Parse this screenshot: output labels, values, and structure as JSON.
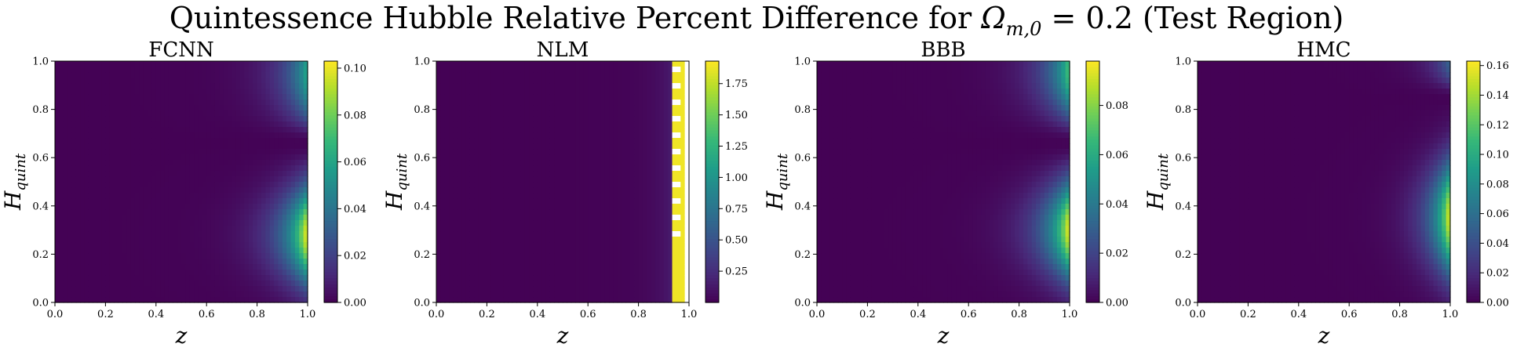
{
  "figure": {
    "title": "Quintessence Hubble Relative Percent Difference for Ωm,0 = 0.2 (Test Region)",
    "title_main": "Quintessence Hubble Relative Percent Difference for ",
    "title_omega": "Ω",
    "title_sub": "m,0",
    "title_rest": " = 0.2 (Test Region)"
  },
  "axis_text": {
    "xlabel": "z",
    "ylabel_main": "H",
    "ylabel_sub": "quint"
  },
  "colormap": "viridis",
  "chart_data": [
    {
      "type": "heatmap",
      "title": "FCNN",
      "xlabel": "z",
      "ylabel": "H_quint",
      "xlim": [
        0,
        1
      ],
      "ylim": [
        0,
        1
      ],
      "x_ticks": [
        "0.0",
        "0.2",
        "0.4",
        "0.6",
        "0.8",
        "1.0"
      ],
      "y_ticks": [
        "0.0",
        "0.2",
        "0.4",
        "0.6",
        "0.8",
        "1.0"
      ],
      "colorbar_range": [
        0,
        0.103
      ],
      "colorbar_ticks": [
        "0.00",
        "0.02",
        "0.04",
        "0.06",
        "0.08",
        "0.10"
      ],
      "colorbar_tick_values": [
        0,
        0.02,
        0.04,
        0.06,
        0.08,
        0.1
      ],
      "features": {
        "low_region": "z < 0.7, near 0",
        "hotspot_lower": {
          "z": 1.0,
          "H": 0.28,
          "value": 0.103
        },
        "hotspot_upper": {
          "z": 1.0,
          "H": 0.95,
          "value": 0.06
        },
        "minimum_band": {
          "z": 1.0,
          "H": 0.66,
          "value": 0.0
        }
      }
    },
    {
      "type": "heatmap",
      "title": "NLM",
      "xlabel": "z",
      "ylabel": "H_quint",
      "xlim": [
        0,
        1
      ],
      "ylim": [
        0,
        1
      ],
      "x_ticks": [
        "0.0",
        "0.2",
        "0.4",
        "0.6",
        "0.8",
        "1.0"
      ],
      "y_ticks": [
        "0.0",
        "0.2",
        "0.4",
        "0.6",
        "0.8",
        "1.0"
      ],
      "colorbar_range": [
        0,
        1.93
      ],
      "colorbar_ticks": [
        "0.25",
        "0.50",
        "0.75",
        "1.00",
        "1.25",
        "1.50",
        "1.75"
      ],
      "colorbar_tick_values": [
        0.25,
        0.5,
        0.75,
        1.0,
        1.25,
        1.5,
        1.75
      ],
      "features": {
        "low_region": "z < 0.9, near 0",
        "vertical_band": {
          "z_from": 0.94,
          "z_to": 0.975,
          "value": 1.9
        },
        "missing_data": "z > 0.975 (white)"
      }
    },
    {
      "type": "heatmap",
      "title": "BBB",
      "xlabel": "z",
      "ylabel": "H_quint",
      "xlim": [
        0,
        1
      ],
      "ylim": [
        0,
        1
      ],
      "x_ticks": [
        "0.0",
        "0.2",
        "0.4",
        "0.6",
        "0.8",
        "1.0"
      ],
      "y_ticks": [
        "0.0",
        "0.2",
        "0.4",
        "0.6",
        "0.8",
        "1.0"
      ],
      "colorbar_range": [
        0,
        0.098
      ],
      "colorbar_ticks": [
        "0.00",
        "0.02",
        "0.04",
        "0.06",
        "0.08"
      ],
      "colorbar_tick_values": [
        0,
        0.02,
        0.04,
        0.06,
        0.08
      ],
      "features": {
        "low_region": "z < 0.7, near 0",
        "hotspot_lower": {
          "z": 1.0,
          "H": 0.3,
          "value": 0.098
        },
        "hotspot_upper": {
          "z": 1.0,
          "H": 0.96,
          "value": 0.07
        },
        "minimum_band": {
          "z": 1.0,
          "H": 0.66,
          "value": 0.0
        }
      }
    },
    {
      "type": "heatmap",
      "title": "HMC",
      "xlabel": "z",
      "ylabel": "H_quint",
      "xlim": [
        0,
        1
      ],
      "ylim": [
        0,
        1
      ],
      "x_ticks": [
        "0.0",
        "0.2",
        "0.4",
        "0.6",
        "0.8",
        "1.0"
      ],
      "y_ticks": [
        "0.0",
        "0.2",
        "0.4",
        "0.6",
        "0.8",
        "1.0"
      ],
      "colorbar_range": [
        0,
        0.163
      ],
      "colorbar_ticks": [
        "0.00",
        "0.02",
        "0.04",
        "0.06",
        "0.08",
        "0.10",
        "0.12",
        "0.14",
        "0.16"
      ],
      "colorbar_tick_values": [
        0,
        0.02,
        0.04,
        0.06,
        0.08,
        0.1,
        0.12,
        0.14,
        0.16
      ],
      "features": {
        "low_region": "z < 0.7, near 0",
        "hotspot_lower": {
          "z": 1.0,
          "H": 0.35,
          "value": 0.163
        },
        "hotspot_upper": {
          "z": 1.0,
          "H": 1.0,
          "value": 0.05
        },
        "minimum_band": {
          "z": 1.0,
          "H": 0.84,
          "value": 0.0
        }
      }
    }
  ]
}
